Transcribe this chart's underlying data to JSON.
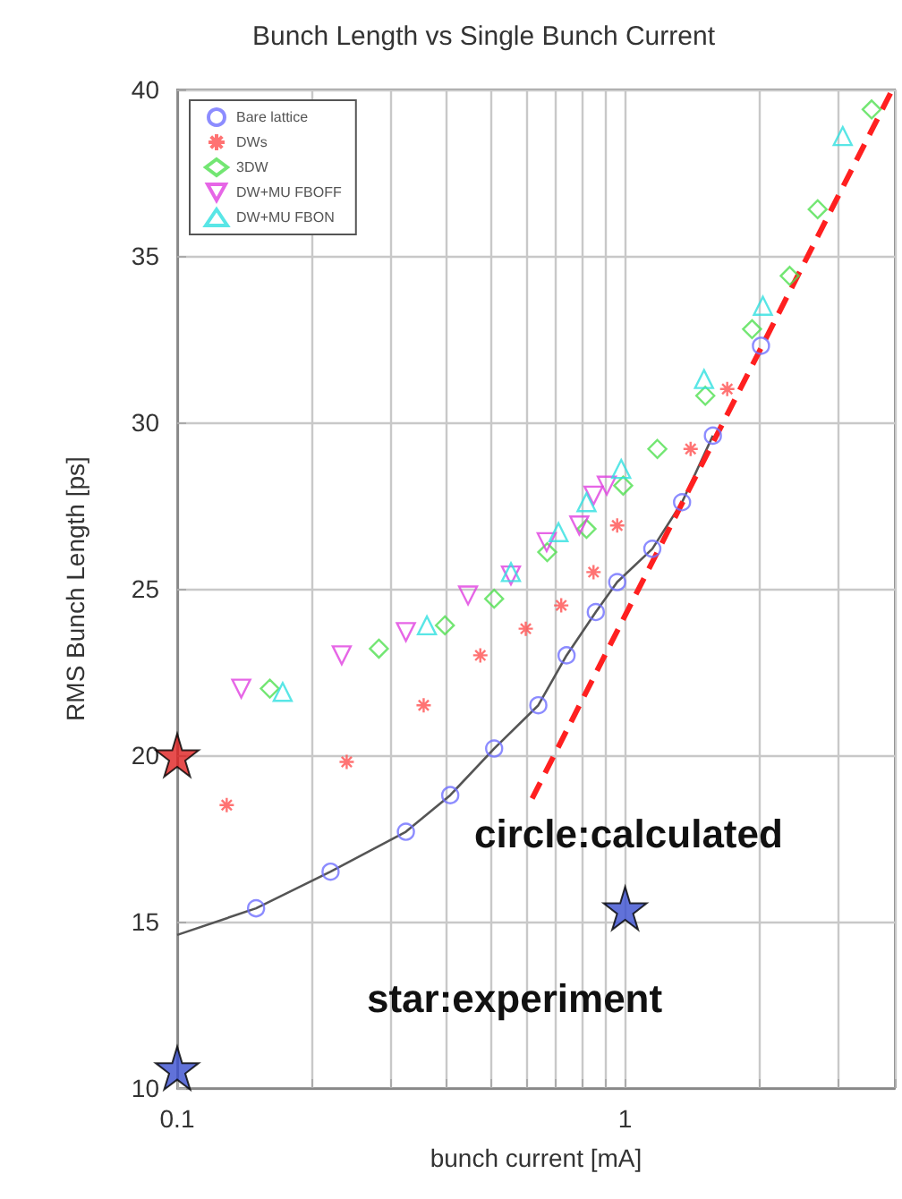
{
  "chart_data": {
    "type": "scatter",
    "title": "Bunch Length vs Single Bunch Current",
    "xlabel": "bunch current [mA]",
    "ylabel": "RMS Bunch Length [ps]",
    "annotations": [
      "circle:calculated",
      "star:experiment"
    ],
    "log": "x",
    "grid": true,
    "legend": "top left",
    "xlim": [
      0.1,
      4
    ],
    "ylim": [
      10,
      40
    ],
    "xticks": [
      0.1,
      {
        "value": 0.2,
        "label": null
      },
      {
        "value": 0.3,
        "label": null
      },
      {
        "value": 0.4,
        "label": null
      },
      {
        "value": 0.5,
        "label": null
      },
      {
        "value": 0.6,
        "label": null
      },
      {
        "value": 0.7,
        "label": null
      },
      {
        "value": 0.8,
        "label": null
      },
      {
        "value": 0.9,
        "label": null
      },
      1,
      {
        "value": 2,
        "label": null
      },
      {
        "value": 3,
        "label": null
      },
      {
        "value": 4,
        "label": null
      }
    ],
    "yticks": [
      10,
      15,
      20,
      25,
      30,
      35,
      40
    ],
    "series": [
      {
        "name": "Bare lattice",
        "color": "#6f6fff",
        "marker": "circle",
        "x": [
          0.15,
          0.22,
          0.324,
          0.407,
          0.51,
          0.64,
          0.74,
          0.86,
          0.96,
          1.15,
          1.34,
          1.57,
          2.01
        ],
        "values": [
          15.4,
          16.5,
          17.7,
          18.8,
          20.2,
          21.5,
          23.0,
          24.3,
          25.2,
          26.2,
          27.6,
          29.6,
          32.3
        ]
      },
      {
        "name": "DWs",
        "color": "#ff5050",
        "marker": "cross",
        "x": [
          0.129,
          0.239,
          0.355,
          0.475,
          0.6,
          0.72,
          0.85,
          0.96,
          1.4,
          1.69
        ],
        "values": [
          18.5,
          19.8,
          21.5,
          23.0,
          23.8,
          24.5,
          25.5,
          26.9,
          29.2,
          31.0
        ]
      },
      {
        "name": "3DW",
        "color": "#50e050",
        "marker": "diamond",
        "x": [
          0.161,
          0.282,
          0.396,
          0.51,
          0.67,
          0.82,
          0.99,
          1.18,
          1.51,
          1.92,
          2.33,
          2.69,
          3.55
        ],
        "values": [
          22.0,
          23.2,
          23.9,
          24.7,
          26.1,
          26.8,
          28.1,
          29.2,
          30.8,
          32.8,
          34.4,
          36.4,
          39.4
        ]
      },
      {
        "name": "DW+MU FBOFF",
        "color": "#e040e0",
        "marker": "triangle_down",
        "x": [
          0.139,
          0.233,
          0.324,
          0.446,
          0.556,
          0.668,
          0.79,
          0.85,
          0.91
        ],
        "values": [
          22.0,
          23.0,
          23.7,
          24.8,
          25.4,
          26.4,
          26.9,
          27.8,
          28.1
        ]
      },
      {
        "name": "DW+MU FBON",
        "color": "#30e0e0",
        "marker": "triangle",
        "x": [
          0.172,
          0.361,
          0.556,
          0.71,
          0.82,
          0.98,
          1.5,
          2.03,
          3.06
        ],
        "values": [
          21.9,
          23.9,
          25.5,
          26.7,
          27.6,
          28.6,
          31.3,
          33.5,
          38.6
        ]
      },
      {
        "type": "line",
        "color": "#555555",
        "marker": "none",
        "line_style": "solid",
        "x": [
          0.1,
          0.15,
          0.22,
          0.324,
          0.407,
          0.51,
          0.64,
          0.74,
          0.86,
          0.96,
          1.15,
          1.34,
          1.57
        ],
        "values": [
          14.6,
          15.4,
          16.5,
          17.7,
          18.8,
          20.2,
          21.5,
          23.0,
          24.3,
          25.2,
          26.2,
          27.6,
          29.6
        ]
      },
      {
        "type": "line",
        "color": "#ff2020",
        "marker": "none",
        "line_style": "dashed",
        "x": [
          0.62,
          3.95
        ],
        "values": [
          18.7,
          40
        ]
      },
      {
        "color": "#e02020",
        "marker": "star",
        "x": [
          0.1
        ],
        "values": [
          20
        ]
      },
      {
        "color": "#3a4fd0",
        "marker": "star",
        "x": [
          0.1,
          1.0
        ],
        "values": [
          10.6,
          15.4
        ]
      }
    ]
  }
}
